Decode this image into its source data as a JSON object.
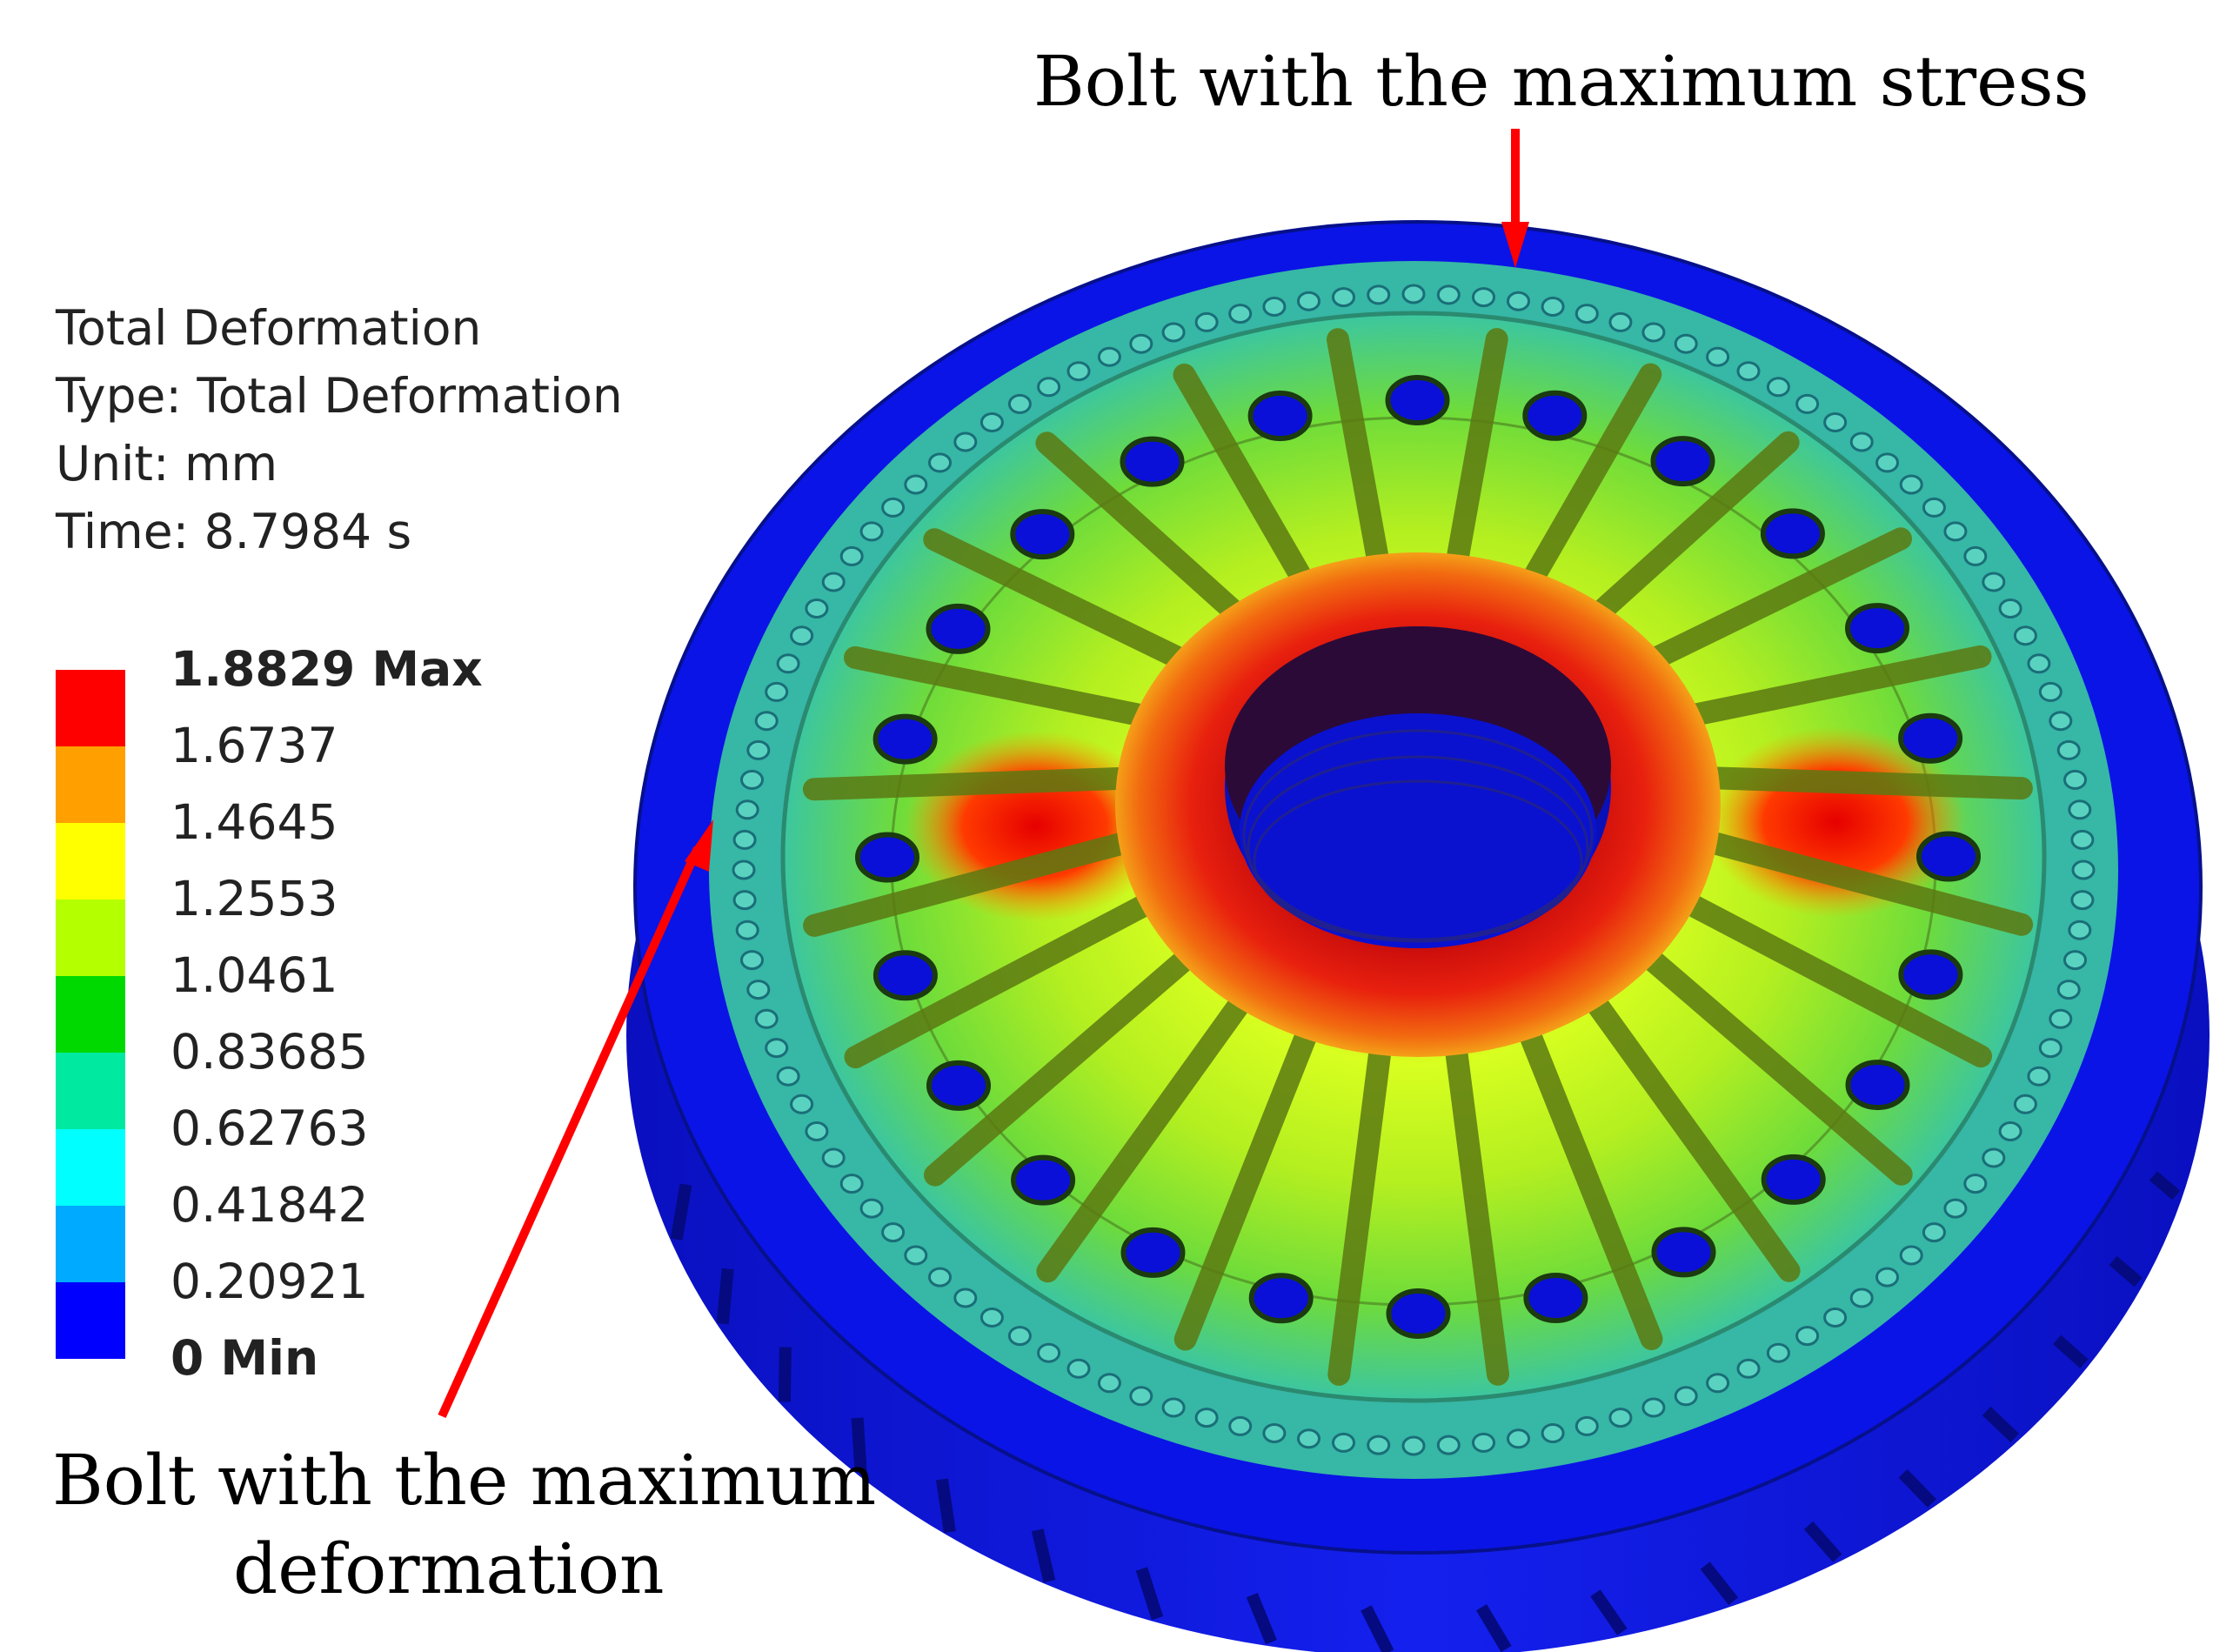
{
  "info": {
    "title": "Total Deformation",
    "type": "Type: Total Deformation",
    "unit": "Unit: mm",
    "time": "Time: 8.7984 s"
  },
  "legend": {
    "labels": [
      "1.8829 Max",
      "1.6737",
      "1.4645",
      "1.2553",
      "1.0461",
      "0.83685",
      "0.62763",
      "0.41842",
      "0.20921",
      "0 Min"
    ],
    "colors": [
      "#ff0000",
      "#ffa000",
      "#ffff00",
      "#b4ff00",
      "#00d900",
      "#00e9a0",
      "#00ffff",
      "#00aaff",
      "#0000ff"
    ]
  },
  "annotations": {
    "max_stress": "Bolt with the maximum stress",
    "max_deformation_line1": "Bolt with the maximum",
    "max_deformation_line2": "deformation"
  },
  "colors": {
    "arrow": "#ff0000",
    "outer_ring": "#0a14e6",
    "bolt_ring": "#3cc6a0",
    "hub": "#e02010"
  }
}
